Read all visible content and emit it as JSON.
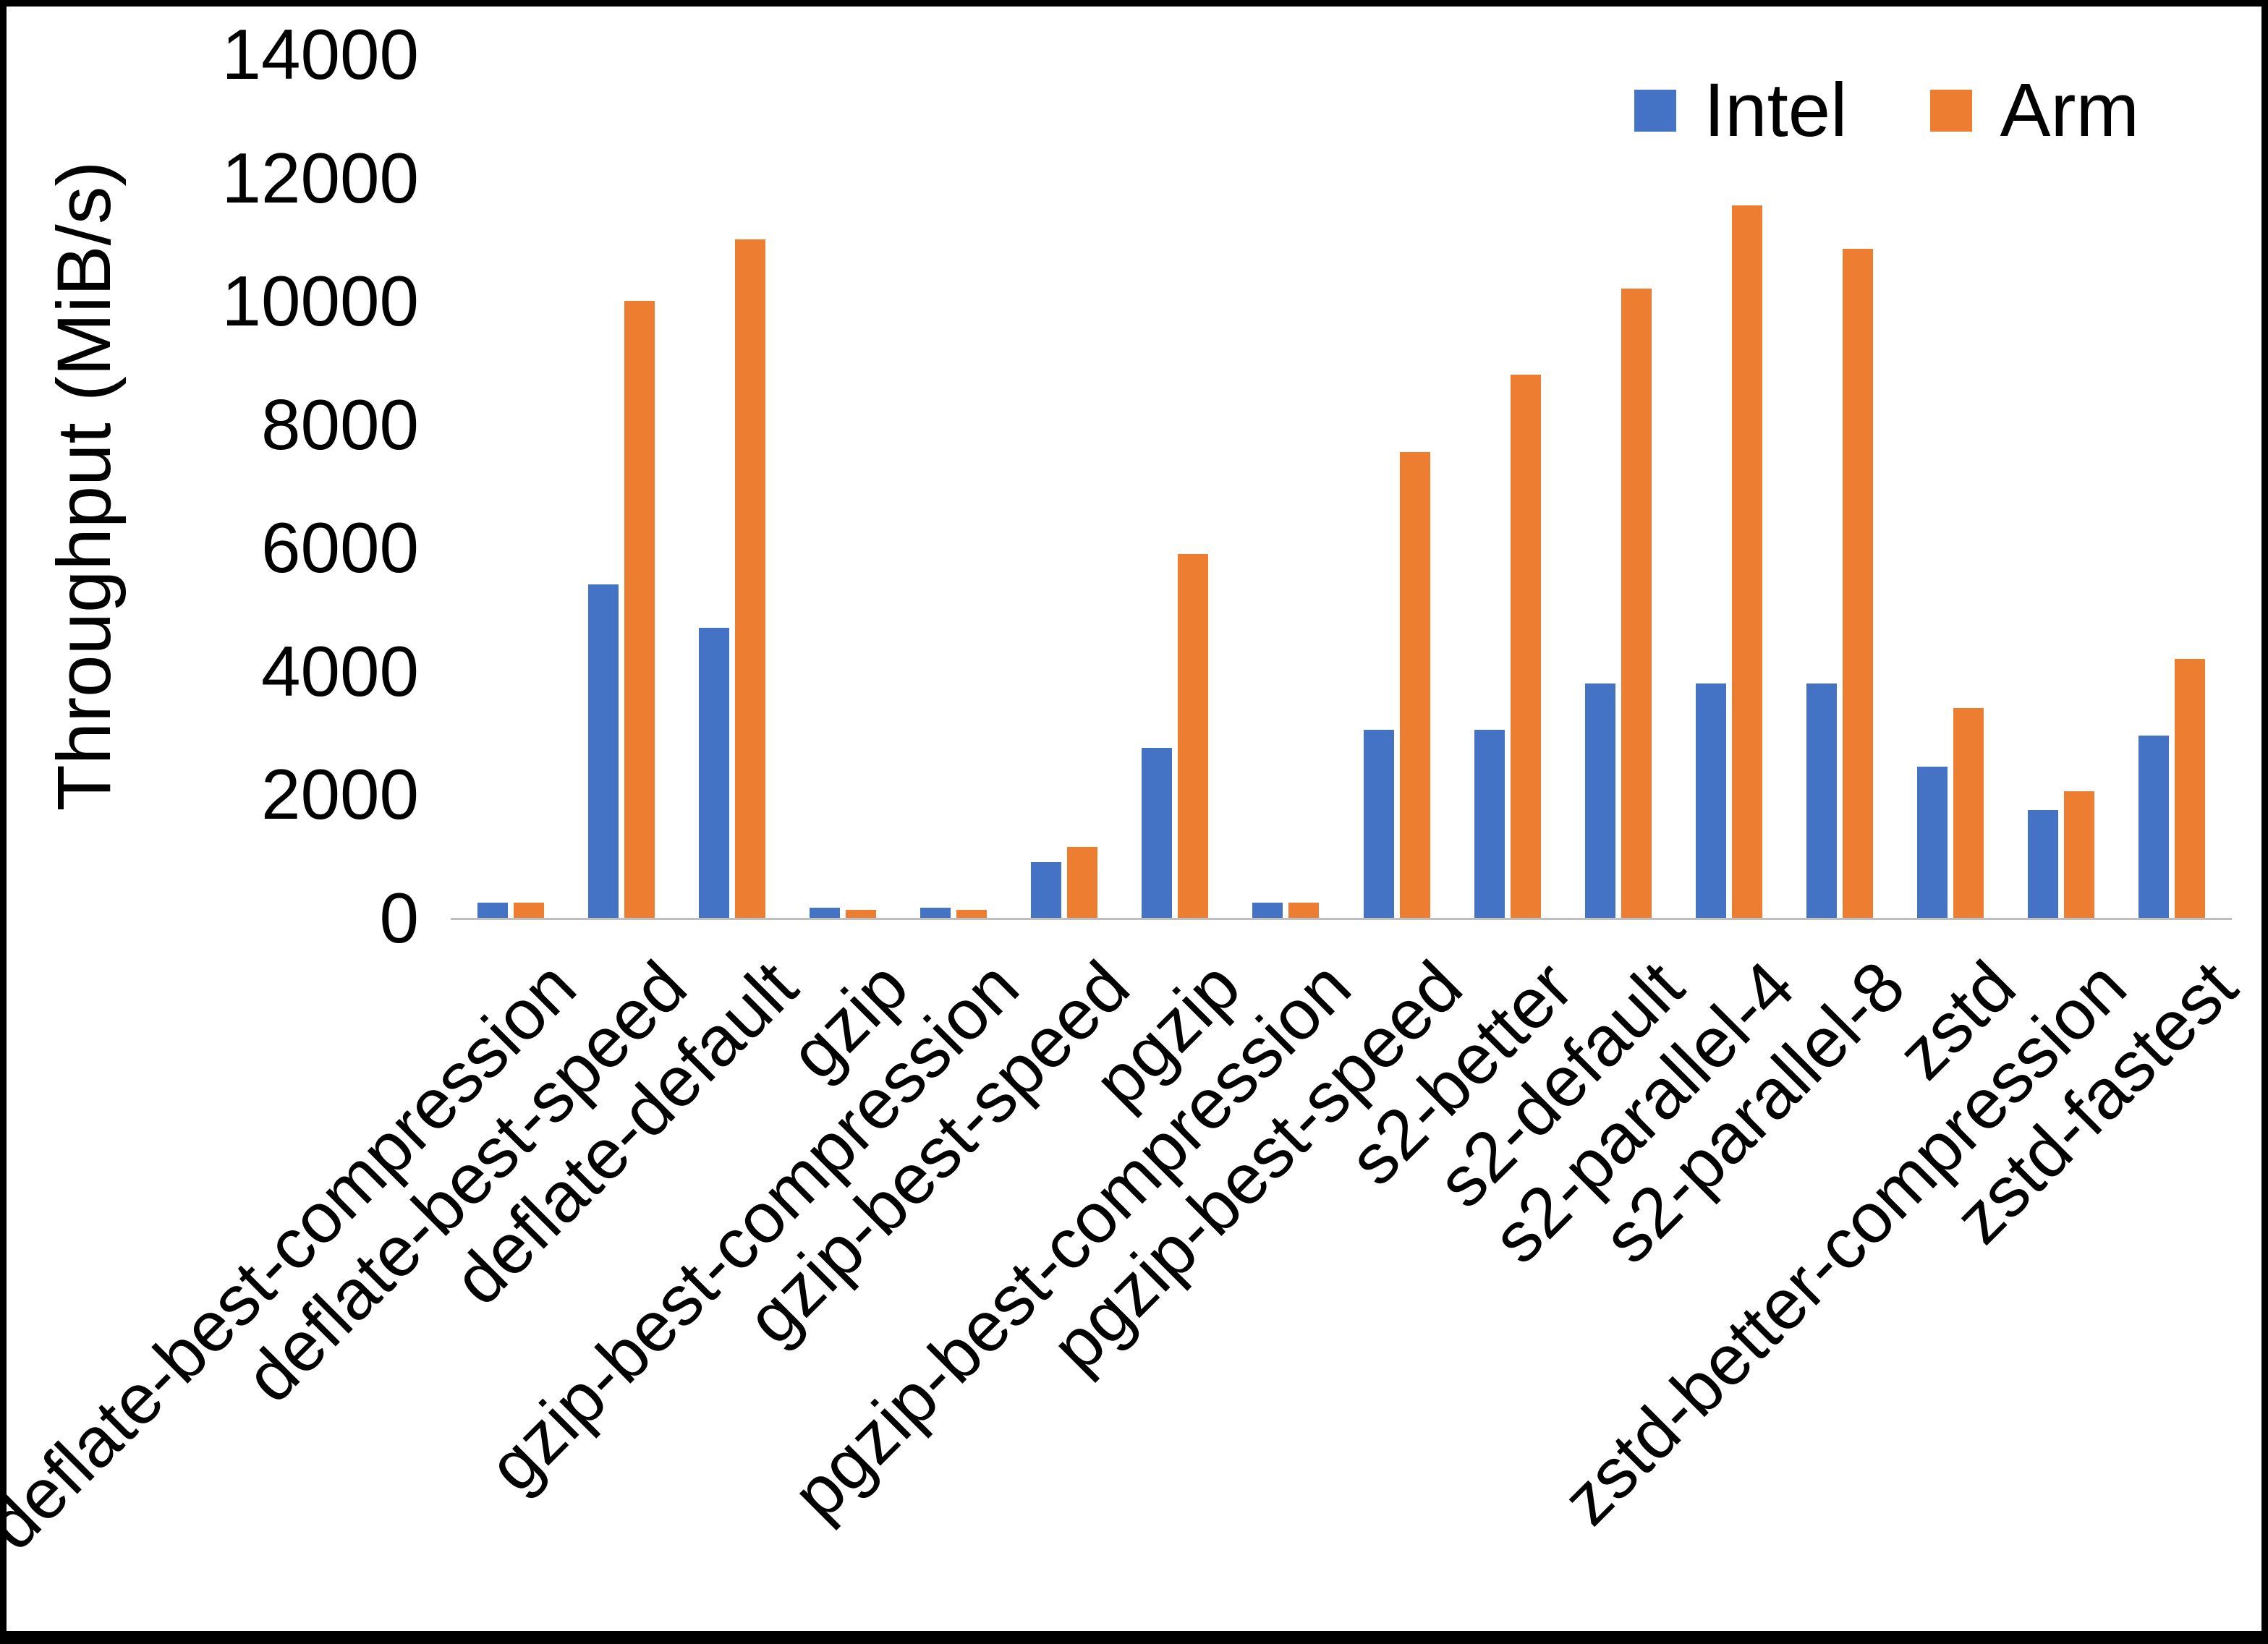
{
  "chart_data": {
    "type": "bar",
    "title": "",
    "xlabel": "",
    "ylabel": "Throughput (MiB/s)",
    "ylim": [
      0,
      14000
    ],
    "ytick_step": 2000,
    "grid": false,
    "legend_position": "top-right",
    "categories": [
      "deflate-best-compression",
      "deflate-best-speed",
      "deflate-default",
      "gzip",
      "gzip-best-compression",
      "gzip-best-speed",
      "pgzip",
      "pgzip-best-compression",
      "pgzip-best-speed",
      "s2-better",
      "s2-default",
      "s2-parallel-4",
      "s2-parallel-8",
      "zstd",
      "zstd-better-compression",
      "zstd-fastest"
    ],
    "series": [
      {
        "name": "Intel",
        "color": "#4472C4",
        "values": [
          250,
          5400,
          4700,
          160,
          160,
          900,
          2750,
          250,
          3050,
          3050,
          3800,
          3800,
          3800,
          2450,
          1750,
          2950
        ]
      },
      {
        "name": "Arm",
        "color": "#ED7D31",
        "values": [
          250,
          10000,
          11000,
          130,
          130,
          1150,
          5900,
          250,
          7550,
          8800,
          10200,
          11550,
          10850,
          3400,
          2050,
          4200
        ]
      }
    ]
  }
}
